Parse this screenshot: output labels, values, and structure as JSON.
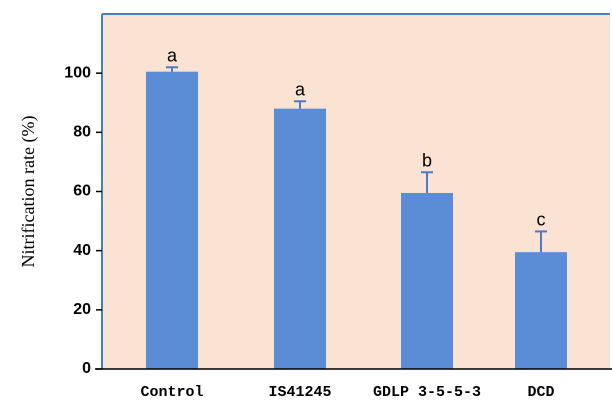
{
  "chart_data": {
    "type": "bar",
    "categories": [
      "Control",
      "IS41245",
      "GDLP 3-5-5-3",
      "DCD"
    ],
    "values": [
      100.5,
      88,
      59.5,
      39.5
    ],
    "errors": [
      1.5,
      2.5,
      7,
      7
    ],
    "significance": [
      "a",
      "a",
      "b",
      "c"
    ],
    "ylabel": "Nitrification rate (%)",
    "xlabel": "",
    "ylim": [
      0,
      120
    ],
    "yticks": [
      0,
      20,
      40,
      60,
      80,
      100
    ],
    "grid": false,
    "colors": {
      "bar": "#5b8dd6",
      "plot_background": "#fbe3d3",
      "frame": "#4a7cc6",
      "error_bar": "#4a7cc6"
    }
  }
}
